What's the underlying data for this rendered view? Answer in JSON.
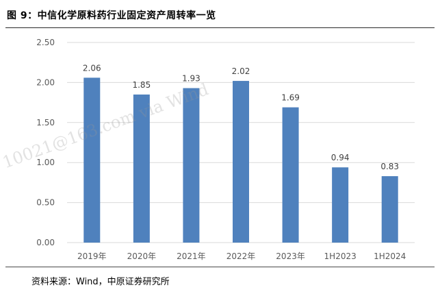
{
  "figure": {
    "title": "图 9：中信化学原料药行业固定资产周转率一览",
    "source": "资料来源：Wind，中原证券研究所",
    "watermark": "10021@163.com via Wind"
  },
  "colors": {
    "bar": "#4f81bd",
    "grid": "#d9d9d9",
    "axis": "#d9d9d9"
  },
  "chart_data": {
    "type": "bar",
    "categories": [
      "2019年",
      "2020年",
      "2021年",
      "2022年",
      "2023年",
      "1H2023",
      "1H2024"
    ],
    "values": [
      2.06,
      1.85,
      1.93,
      2.02,
      1.69,
      0.94,
      0.83
    ],
    "value_labels": [
      "2.06",
      "1.85",
      "1.93",
      "2.02",
      "1.69",
      "0.94",
      "0.83"
    ],
    "title": "",
    "xlabel": "",
    "ylabel": "",
    "ylim": [
      0,
      2.5
    ],
    "yticks": [
      "0.00",
      "0.50",
      "1.00",
      "1.50",
      "2.00",
      "2.50"
    ],
    "ytick_values": [
      0,
      0.5,
      1.0,
      1.5,
      2.0,
      2.5
    ],
    "grid": true,
    "legend": "none"
  }
}
